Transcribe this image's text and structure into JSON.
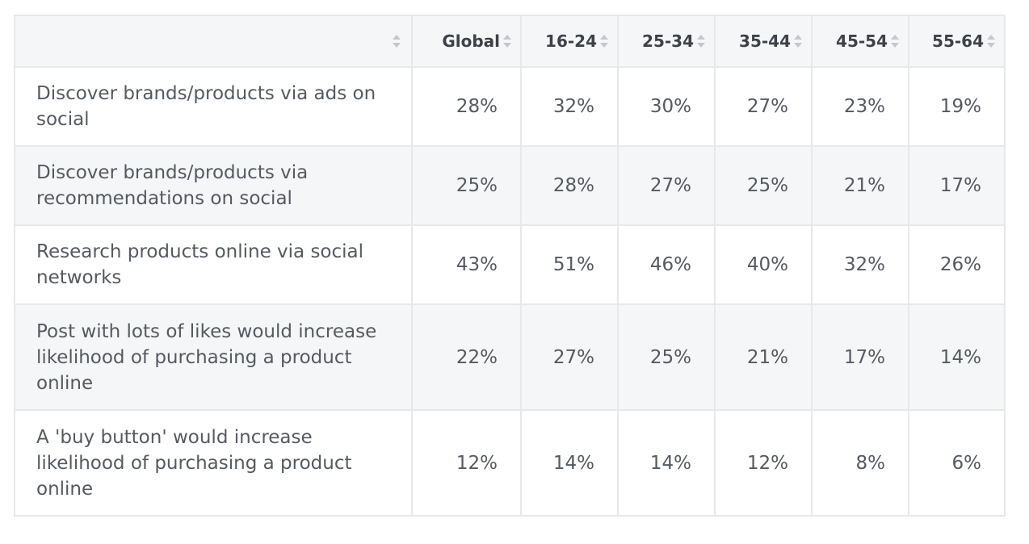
{
  "chart_data": {
    "type": "table",
    "columns": [
      "",
      "Global",
      "16-24",
      "25-34",
      "35-44",
      "45-54",
      "55-64"
    ],
    "rows": [
      {
        "label": "Discover brands/products via ads on social",
        "values": [
          "28%",
          "32%",
          "30%",
          "27%",
          "23%",
          "19%"
        ]
      },
      {
        "label": "Discover brands/products via recommendations on social",
        "values": [
          "25%",
          "28%",
          "27%",
          "25%",
          "21%",
          "17%"
        ]
      },
      {
        "label": "Research products online via social networks",
        "values": [
          "43%",
          "51%",
          "46%",
          "40%",
          "32%",
          "26%"
        ]
      },
      {
        "label": "Post with lots of likes would increase likelihood of purchasing a product online",
        "values": [
          "22%",
          "27%",
          "25%",
          "21%",
          "17%",
          "14%"
        ]
      },
      {
        "label": "A 'buy button' would increase likelihood of purchasing a product online",
        "values": [
          "12%",
          "14%",
          "14%",
          "12%",
          "8%",
          "6%"
        ]
      }
    ]
  },
  "colors": {
    "header_bg": "#f5f6f8",
    "stripe_bg": "#f5f6f8",
    "border": "#e7e8ea",
    "text": "#555a61",
    "header_text": "#3d4148",
    "sort_icon": "#c4c7cc"
  },
  "icons": {
    "sort": "sort-both-icon"
  }
}
